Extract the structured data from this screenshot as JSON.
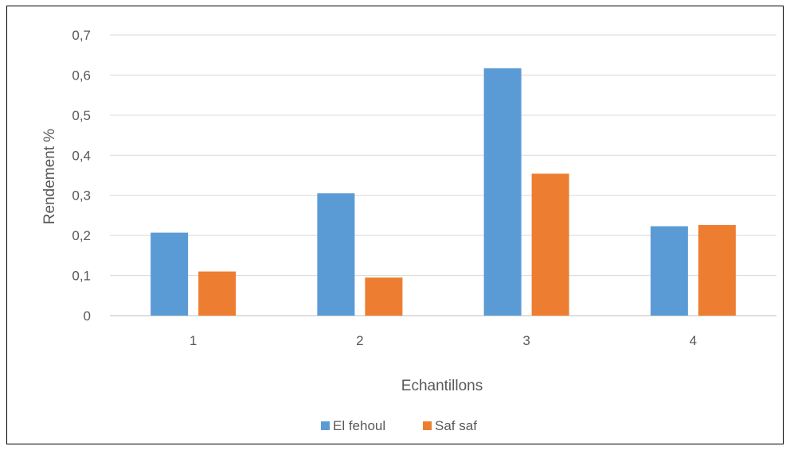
{
  "chart_data": {
    "type": "bar",
    "title": "",
    "xlabel": "Echantillons",
    "ylabel": "Rendement %",
    "categories": [
      "1",
      "2",
      "3",
      "4"
    ],
    "ylim": [
      0,
      0.7
    ],
    "yticks": [
      "0",
      "0,1",
      "0,2",
      "0,3",
      "0,4",
      "0,5",
      "0,6",
      "0,7"
    ],
    "grid": true,
    "legend_position": "bottom",
    "series": [
      {
        "name": "El fehoul",
        "color": "#5B9BD5",
        "values": [
          0.207,
          0.305,
          0.617,
          0.223
        ]
      },
      {
        "name": "Saf saf",
        "color": "#ED7D31",
        "values": [
          0.11,
          0.095,
          0.354,
          0.226
        ]
      }
    ]
  }
}
